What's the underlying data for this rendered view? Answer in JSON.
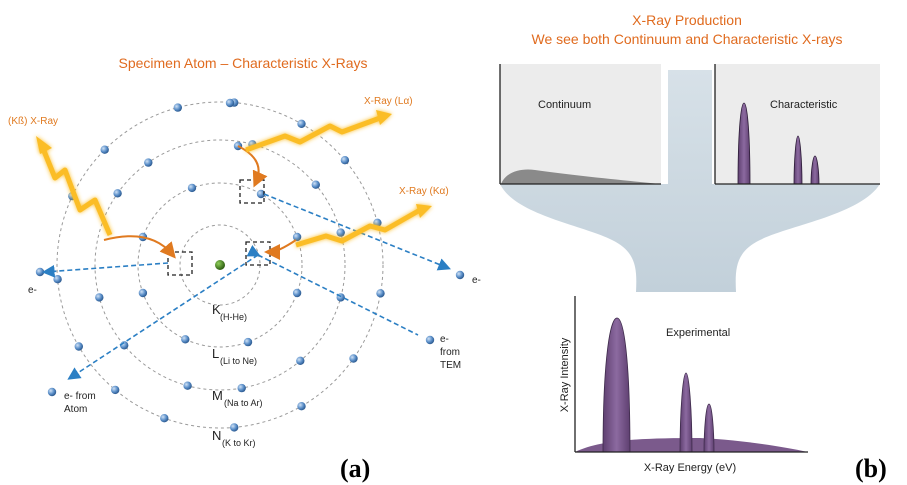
{
  "panel_a": {
    "title": "Specimen Atom – Characteristic X-Rays",
    "xray_kbeta": "(Kß) X-Ray",
    "xray_lalpha": "X-Ray (Lα)",
    "xray_kalpha": "X-Ray (Kα)",
    "electron_left": "e-",
    "electron_right": "e-",
    "electron_atom": "e- from",
    "electron_atom_2": "Atom",
    "electron_tem": "e-",
    "electron_tem_2": "from",
    "electron_tem_3": "TEM",
    "shell_k": "K",
    "shell_k_sub": "(H-He)",
    "shell_l": "L",
    "shell_l_sub": "(Li to Ne)",
    "shell_m": "M",
    "shell_m_sub": "(Na to Ar)",
    "shell_n": "N",
    "shell_n_sub": "(K to Kr)",
    "label": "(a)"
  },
  "panel_b": {
    "title_line1": "X-Ray Production",
    "title_line2": "We see both Continuum and Characteristic X-rays",
    "continuum": "Continuum",
    "characteristic": "Characteristic",
    "experimental": "Experimental",
    "ylabel": "X-Ray Intensity",
    "xlabel": "X-Ray Energy (eV)",
    "label": "(b)"
  },
  "colors": {
    "orange": "#e06b1f",
    "electron": "#5b8fc9",
    "nucleus": "#3d7a1e",
    "peak": "#7b5a8c",
    "arrow_blue": "#2b7fc4",
    "funnel": "#c9d6e0"
  }
}
